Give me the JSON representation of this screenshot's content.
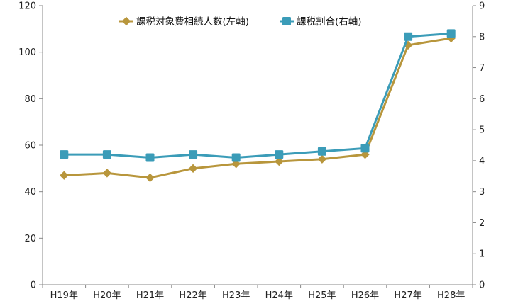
{
  "chart_data": {
    "type": "line",
    "categories": [
      "H19年",
      "H20年",
      "H21年",
      "H22年",
      "H23年",
      "H24年",
      "H25年",
      "H26年",
      "H27年",
      "H28年"
    ],
    "series": [
      {
        "name": "課税対象費相続人数(左軸)",
        "axis": "left",
        "marker": "diamond",
        "color": "#B8963C",
        "values": [
          47,
          48,
          46,
          50,
          52,
          53,
          54,
          56,
          103,
          106
        ]
      },
      {
        "name": "課税割合(右軸)",
        "axis": "right",
        "marker": "square",
        "color": "#3B9CB8",
        "values": [
          4.2,
          4.2,
          4.1,
          4.2,
          4.1,
          4.2,
          4.3,
          4.4,
          8.0,
          8.1
        ]
      }
    ],
    "yleft": {
      "min": 0,
      "max": 120,
      "ticks": [
        0,
        20,
        40,
        60,
        80,
        100,
        120
      ]
    },
    "yright": {
      "min": 0,
      "max": 9,
      "ticks": [
        0,
        1,
        2,
        3,
        4,
        5,
        6,
        7,
        8,
        9
      ]
    },
    "legend_position": "top-center",
    "grid": false
  }
}
